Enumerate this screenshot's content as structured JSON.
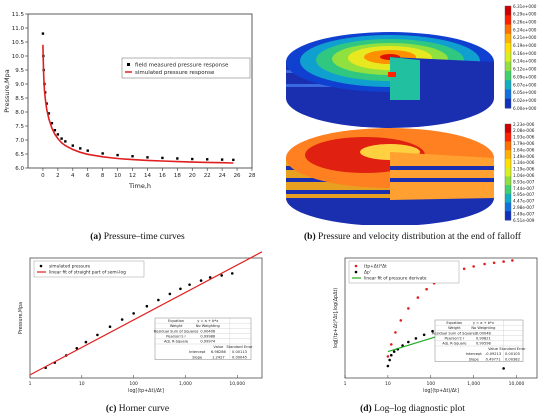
{
  "captions": {
    "a": {
      "tag": "(a)",
      "text": "Pressure–time curves"
    },
    "b": {
      "tag": "(b)",
      "text": "Pressure and velocity distribution at the end of falloff"
    },
    "c": {
      "tag": "(c)",
      "text": "Horner curve"
    },
    "d": {
      "tag": "(d)",
      "text": "Log–log diagnostic plot"
    }
  },
  "chart_data": [
    {
      "id": "a",
      "type": "scatter",
      "xlabel": "Time,h",
      "ylabel": "Pressure,Mpa",
      "xlim": [
        -2,
        28
      ],
      "ylim": [
        6.0,
        11.5
      ],
      "xticks": [
        "0",
        "2",
        "4",
        "6",
        "8",
        "10",
        "12",
        "14",
        "16",
        "18",
        "20",
        "22",
        "24",
        "26",
        "28"
      ],
      "yticks": [
        "6.0",
        "6.5",
        "7.0",
        "7.5",
        "8.0",
        "8.5",
        "9.0",
        "9.5",
        "10.0",
        "10.5",
        "11.0",
        "11.5"
      ],
      "legend": {
        "position": "top-right",
        "entries": [
          "field measured pressure response",
          "simulated pressure response"
        ]
      },
      "series": [
        {
          "name": "field measured pressure response",
          "style": "points",
          "color": "#000000",
          "x": [
            0.0,
            0.05,
            0.1,
            0.2,
            0.3,
            0.5,
            0.8,
            1.2,
            1.6,
            2.0,
            2.5,
            3.0,
            4.0,
            5.0,
            6.0,
            8.0,
            10.0,
            12.0,
            14.0,
            16.0,
            18.0,
            20.0,
            22.0,
            24.0,
            25.5
          ],
          "y": [
            10.8,
            10.0,
            9.5,
            9.0,
            8.7,
            8.3,
            7.95,
            7.6,
            7.35,
            7.2,
            7.05,
            6.95,
            6.8,
            6.7,
            6.62,
            6.52,
            6.46,
            6.42,
            6.38,
            6.36,
            6.34,
            6.32,
            6.31,
            6.3,
            6.29
          ]
        },
        {
          "name": "simulated pressure response",
          "style": "line",
          "color": "#e02020",
          "x": [
            0.0,
            0.05,
            0.1,
            0.2,
            0.3,
            0.5,
            0.8,
            1.2,
            1.6,
            2.0,
            2.5,
            3.0,
            4.0,
            5.0,
            6.0,
            8.0,
            10.0,
            12.0,
            14.0,
            16.0,
            18.0,
            20.0,
            22.0,
            24.0,
            25.5
          ],
          "y": [
            10.4,
            9.8,
            9.3,
            8.8,
            8.5,
            8.1,
            7.75,
            7.42,
            7.2,
            7.05,
            6.9,
            6.8,
            6.66,
            6.56,
            6.49,
            6.4,
            6.34,
            6.3,
            6.27,
            6.25,
            6.23,
            6.21,
            6.2,
            6.19,
            6.18
          ]
        }
      ]
    },
    {
      "id": "c",
      "type": "scatter",
      "title": "",
      "xlabel": "log[(tp+Δt)/Δt]",
      "ylabel": "Pressure,Mpa",
      "xscale": "log",
      "xlim": [
        1,
        30000
      ],
      "xticks": [
        "1",
        "10",
        "100",
        "1,000",
        "10,000"
      ],
      "legend": {
        "position": "top-left",
        "entries": [
          "simulated pressure",
          "linear fit of straight part of semi-log"
        ]
      },
      "series": [
        {
          "name": "simulated pressure",
          "style": "points",
          "color": "#000000",
          "x": [
            2,
            3,
            5,
            8,
            12,
            20,
            35,
            60,
            100,
            180,
            300,
            500,
            800,
            1200,
            2000,
            3000,
            5000,
            8000
          ],
          "y": [
            0.05,
            0.1,
            0.17,
            0.24,
            0.3,
            0.37,
            0.45,
            0.52,
            0.58,
            0.65,
            0.71,
            0.77,
            0.82,
            0.86,
            0.9,
            0.93,
            0.95,
            0.97
          ]
        },
        {
          "name": "linear fit of straight part of semi-log",
          "style": "line",
          "color": "#e02020",
          "x": [
            1,
            30000
          ],
          "y": [
            -0.02,
            1.18
          ]
        }
      ],
      "fit_table": {
        "rows": [
          [
            "Equation",
            "y = a + b*x"
          ],
          [
            "Weight",
            "No Weighting"
          ],
          [
            "Residual Sum of Squares",
            "0.00406"
          ],
          [
            "Pearson's r",
            "0.99986"
          ],
          [
            "Adj. R-Square",
            "0.99974"
          ]
        ],
        "headers": [
          "",
          "",
          "Value",
          "Standard Error"
        ],
        "params": [
          [
            "",
            "Intercept",
            "6.98286",
            "0.00113"
          ],
          [
            "",
            "Slope",
            "1.2427",
            "0.00045"
          ]
        ]
      }
    },
    {
      "id": "d",
      "type": "scatter",
      "xlabel": "log[(tp+Δt)/Δt]",
      "ylabel": "log[(tp+Δt)*Δt],log(ΔpΔt)",
      "xscale": "log",
      "xlim": [
        1,
        30000
      ],
      "xticks": [
        "1",
        "10",
        "100",
        "1,000",
        "10,000"
      ],
      "legend": {
        "position": "top-left",
        "entries": [
          "(tp+Δt)*Δt",
          "Δp'",
          "linear fit of pressure derivate"
        ]
      },
      "series": [
        {
          "name": "(tp+Δt)*Δt",
          "style": "points",
          "color": "#e02020",
          "x": [
            10,
            12,
            15,
            20,
            30,
            50,
            80,
            120,
            200,
            350,
            600,
            1000,
            1800,
            3000,
            5000,
            8000
          ],
          "y": [
            0.18,
            0.28,
            0.38,
            0.48,
            0.58,
            0.67,
            0.74,
            0.79,
            0.84,
            0.88,
            0.91,
            0.93,
            0.95,
            0.96,
            0.97,
            0.98
          ]
        },
        {
          "name": "Δp'",
          "style": "points",
          "color": "#000000",
          "x": [
            10,
            11,
            12,
            14,
            17,
            22,
            30,
            45,
            70,
            110,
            180,
            300,
            500,
            800,
            1200,
            1800,
            2500,
            3500,
            5000
          ],
          "y": [
            0.1,
            0.15,
            0.19,
            0.22,
            0.24,
            0.27,
            0.3,
            0.33,
            0.36,
            0.39,
            0.41,
            0.43,
            0.44,
            0.44,
            0.42,
            0.38,
            0.31,
            0.22,
            0.08
          ]
        },
        {
          "name": "linear fit of pressure derivate",
          "style": "line",
          "color": "#22aa22",
          "x": [
            10,
            1000
          ],
          "y": [
            0.22,
            0.44
          ]
        }
      ],
      "fit_table": {
        "rows": [
          [
            "Equation",
            "y = a + b*x"
          ],
          [
            "Weight",
            "No Weighting"
          ],
          [
            "Residual Sum of Squares",
            "0.00048"
          ],
          [
            "Pearson's r",
            "0.99821"
          ],
          [
            "Adj. R-Square",
            "0.99598"
          ]
        ],
        "headers": [
          "",
          "",
          "Value",
          "Standard Error"
        ],
        "params": [
          [
            "",
            "Intercept",
            "-0.09213",
            "0.00105"
          ],
          [
            "",
            "Slope",
            "0.49771",
            "0.00382"
          ]
        ]
      }
    }
  ],
  "colorbars": {
    "pressure": {
      "colors": [
        "#d00000",
        "#ff2000",
        "#ff7000",
        "#ffb000",
        "#ffe000",
        "#d8f020",
        "#90e040",
        "#40d070",
        "#10b0c0",
        "#1070e0",
        "#1030c0"
      ],
      "labels": [
        "6.31e+000",
        "6.29e+000",
        "6.26e+000",
        "6.24e+000",
        "6.21e+000",
        "6.19e+000",
        "6.16e+000",
        "6.14e+000",
        "6.12e+000",
        "6.09e+000",
        "6.07e+000",
        "6.05e+000",
        "6.02e+000",
        "6.00e+000"
      ]
    },
    "velocity": {
      "colors": [
        "#d00000",
        "#ff2000",
        "#ff7000",
        "#ffb000",
        "#ffe000",
        "#d8f020",
        "#90e040",
        "#40d070",
        "#10b0c0",
        "#1070e0",
        "#1030c0"
      ],
      "labels": [
        "2.23e-006",
        "2.08e-006",
        "1.93e-006",
        "1.79e-006",
        "1.64e-006",
        "1.49e-006",
        "1.34e-006",
        "1.19e-006",
        "1.04e-006",
        "8.93e-007",
        "7.44e-007",
        "5.95e-007",
        "4.47e-007",
        "2.98e-007",
        "1.49e-007",
        "6.51e-009"
      ]
    }
  }
}
